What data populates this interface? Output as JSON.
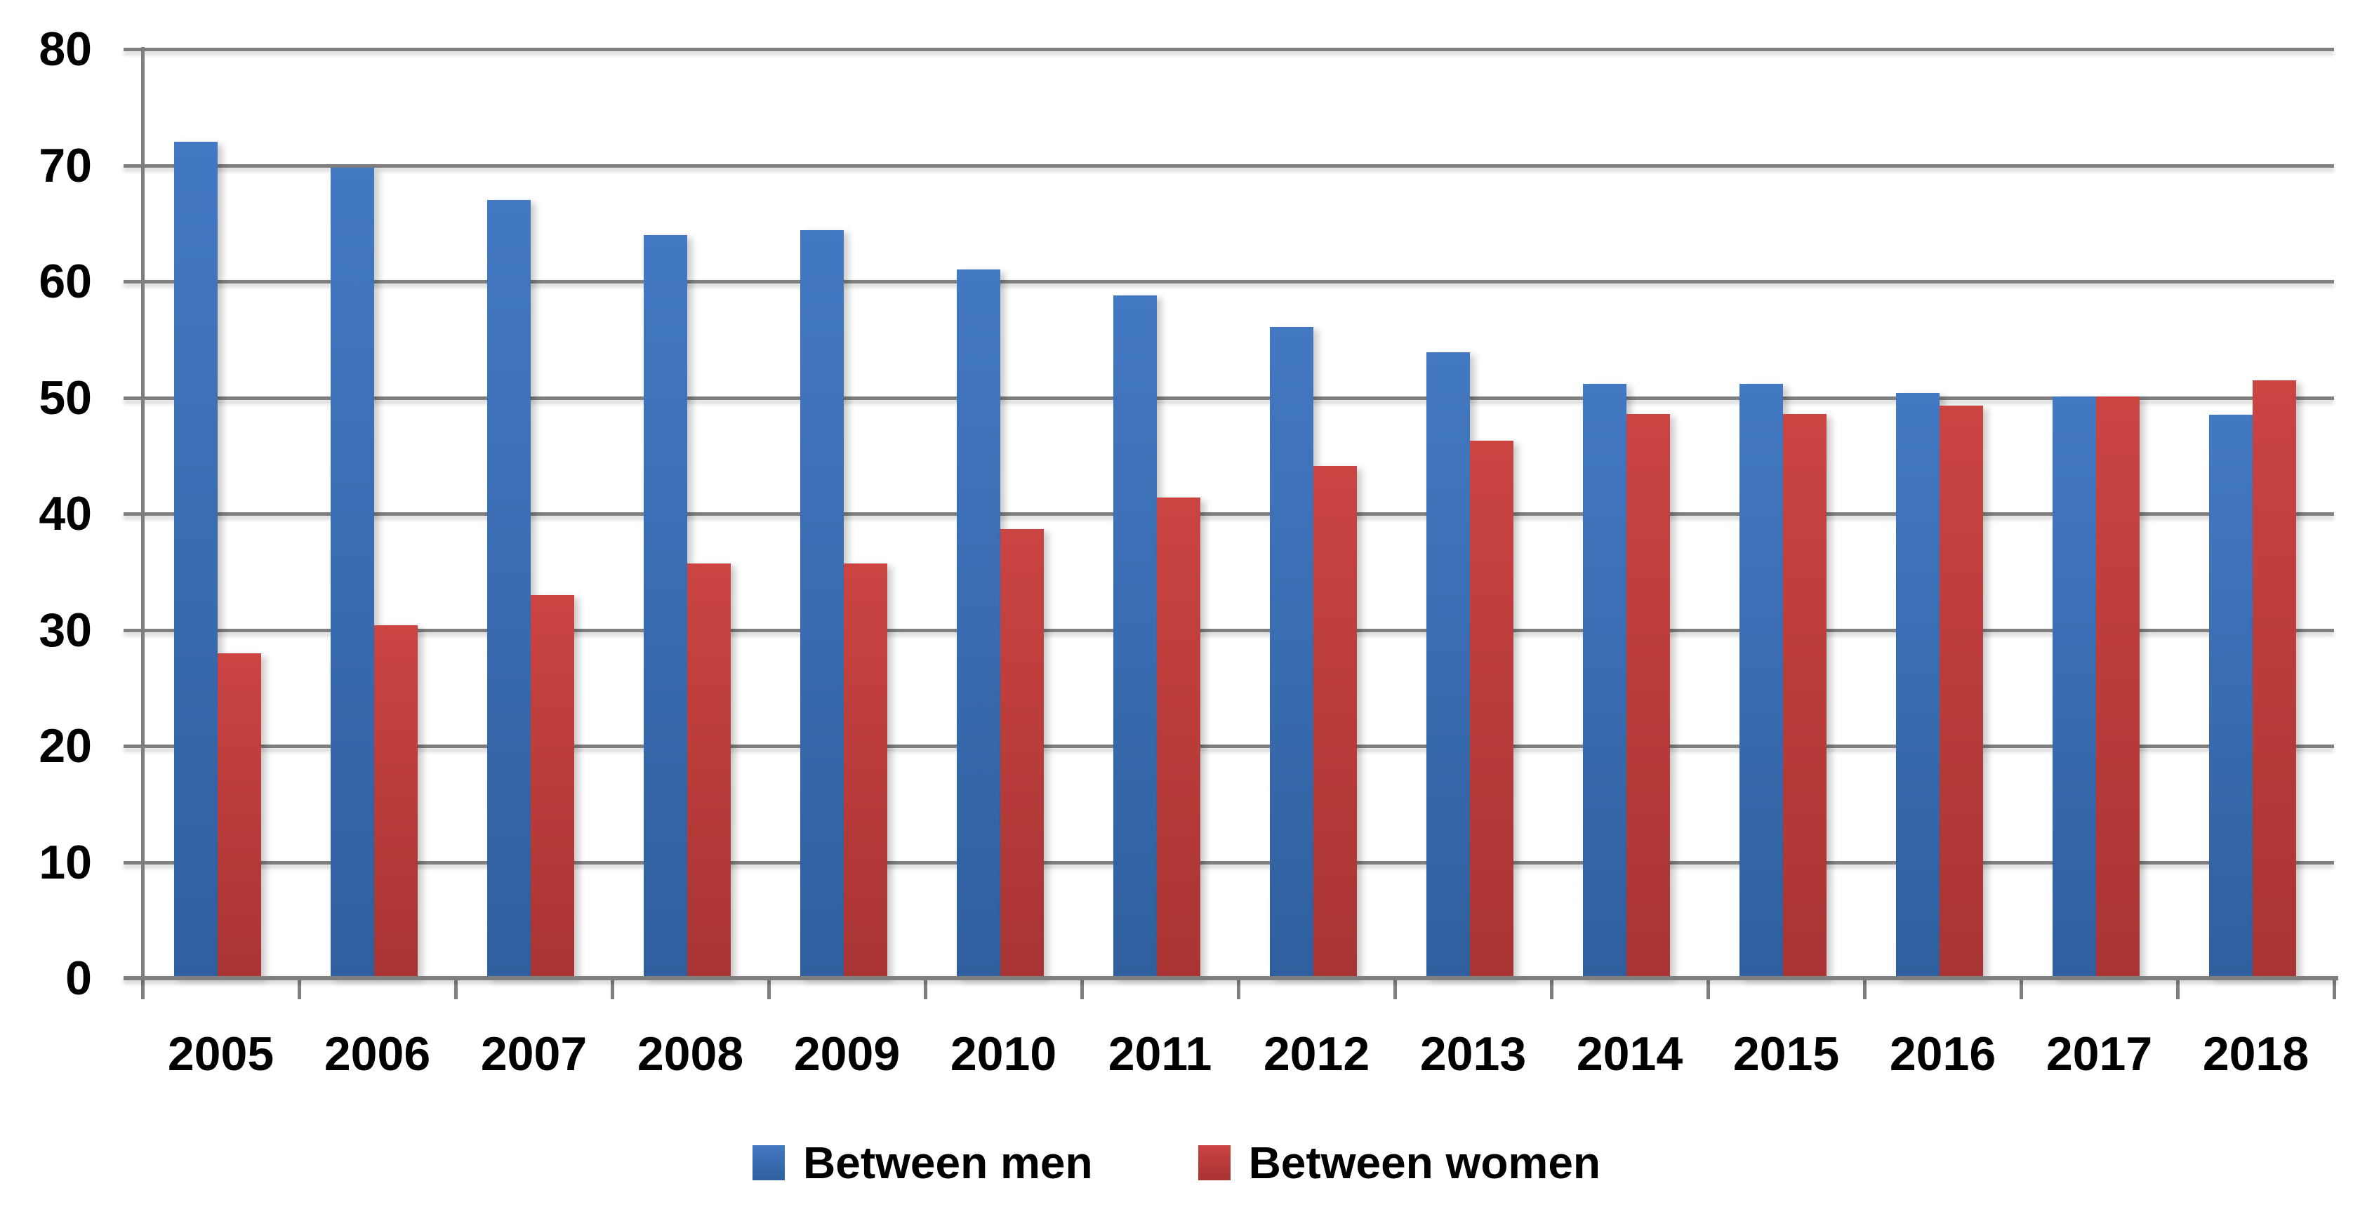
{
  "chart_data": {
    "type": "bar",
    "title": "",
    "categories": [
      "2005",
      "2006",
      "2007",
      "2008",
      "2009",
      "2010",
      "2011",
      "2012",
      "2013",
      "2014",
      "2015",
      "2016",
      "2017",
      "2018"
    ],
    "series": [
      {
        "name": "Between men",
        "color": "#3A6FB5",
        "color_top": "#4379C3",
        "color_bottom": "#2F5F9E",
        "values": [
          72.0,
          69.8,
          67.0,
          64.0,
          64.4,
          61.0,
          58.8,
          56.1,
          53.9,
          51.2,
          51.2,
          50.4,
          50.1,
          48.5
        ]
      },
      {
        "name": "Between women",
        "color": "#BE403E",
        "color_top": "#CA4442",
        "color_bottom": "#A83433",
        "values": [
          28.0,
          30.4,
          33.0,
          35.7,
          35.7,
          38.7,
          41.4,
          44.1,
          46.3,
          48.6,
          48.6,
          49.3,
          50.1,
          51.5
        ]
      }
    ],
    "xlabel": "",
    "ylabel": "",
    "ylim": [
      0,
      80
    ],
    "ytick_step": 10,
    "ytick_labels": [
      "0",
      "10",
      "20",
      "30",
      "40",
      "50",
      "60",
      "70",
      "80"
    ],
    "grid": "horizontal",
    "gridline_color": "#7f7f7f",
    "label_color": "#000000",
    "legend_position": "bottom"
  }
}
